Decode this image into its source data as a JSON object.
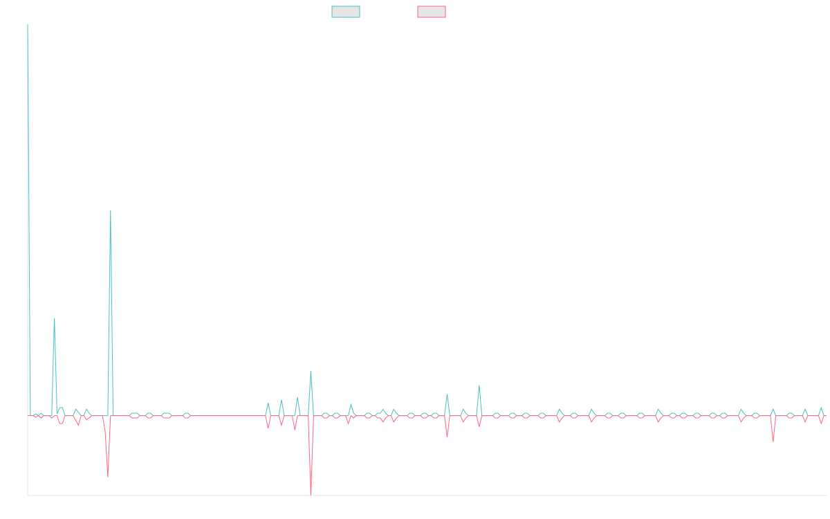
{
  "chart_data": {
    "type": "line",
    "title": "",
    "xlabel": "",
    "ylabel": "",
    "legend_position": "top-center",
    "grid": false,
    "ylim": [
      -100,
      490
    ],
    "series": [
      {
        "color": "#4bc0c0",
        "fill": "#e6e6e6",
        "values": [
          490,
          0,
          0,
          2,
          0,
          3,
          0,
          0,
          0,
          0,
          122,
          2,
          10,
          10,
          0,
          0,
          0,
          0,
          8,
          4,
          0,
          0,
          8,
          3,
          0,
          0,
          0,
          0,
          0,
          0,
          0,
          257,
          0,
          0,
          0,
          0,
          0,
          0,
          0,
          3,
          3,
          3,
          0,
          0,
          0,
          3,
          3,
          0,
          0,
          0,
          0,
          3,
          3,
          3,
          0,
          0,
          0,
          0,
          0,
          3,
          3,
          0,
          0,
          0,
          0,
          0,
          0,
          0,
          0,
          0,
          0,
          0,
          0,
          0,
          0,
          0,
          0,
          0,
          0,
          0,
          0,
          0,
          0,
          0,
          0,
          0,
          0,
          0,
          0,
          0,
          16,
          0,
          0,
          0,
          0,
          20,
          0,
          0,
          0,
          0,
          0,
          23,
          0,
          0,
          0,
          0,
          56,
          0,
          0,
          0,
          0,
          3,
          3,
          0,
          0,
          3,
          3,
          0,
          0,
          0,
          0,
          14,
          3,
          0,
          0,
          0,
          0,
          3,
          3,
          0,
          0,
          3,
          3,
          8,
          3,
          0,
          0,
          8,
          3,
          0,
          0,
          0,
          0,
          3,
          3,
          0,
          0,
          0,
          3,
          3,
          0,
          0,
          3,
          3,
          0,
          0,
          0,
          27,
          0,
          0,
          0,
          0,
          0,
          8,
          3,
          0,
          0,
          0,
          0,
          38,
          0,
          0,
          0,
          0,
          0,
          3,
          3,
          0,
          0,
          0,
          0,
          3,
          3,
          0,
          0,
          0,
          3,
          3,
          0,
          0,
          0,
          0,
          3,
          3,
          0,
          0,
          0,
          0,
          0,
          8,
          3,
          0,
          0,
          0,
          3,
          3,
          0,
          0,
          0,
          0,
          0,
          8,
          3,
          0,
          0,
          0,
          0,
          3,
          3,
          0,
          0,
          0,
          3,
          3,
          0,
          0,
          0,
          0,
          0,
          3,
          3,
          0,
          0,
          0,
          0,
          0,
          8,
          3,
          0,
          0,
          0,
          3,
          3,
          0,
          0,
          3,
          3,
          0,
          0,
          0,
          3,
          3,
          0,
          0,
          0,
          0,
          3,
          3,
          0,
          0,
          3,
          3,
          0,
          0,
          0,
          0,
          0,
          8,
          3,
          0,
          0,
          0,
          3,
          3,
          0,
          0,
          0,
          0,
          0,
          8,
          0,
          0,
          0,
          0,
          0,
          3,
          3,
          0,
          0,
          0,
          0,
          8,
          0,
          0,
          0,
          0,
          0,
          10,
          0,
          0
        ]
      },
      {
        "color": "#ff6384",
        "fill": "#e6e6e6",
        "values": [
          0,
          0,
          0,
          -2,
          0,
          -3,
          0,
          0,
          0,
          -3,
          0,
          0,
          -10,
          -10,
          0,
          0,
          0,
          0,
          -6,
          -12,
          0,
          0,
          -5,
          -3,
          0,
          0,
          0,
          0,
          0,
          -20,
          -77,
          0,
          0,
          0,
          0,
          0,
          0,
          0,
          0,
          -3,
          -3,
          -3,
          0,
          0,
          0,
          -3,
          -3,
          0,
          0,
          0,
          0,
          -3,
          -3,
          -3,
          0,
          0,
          0,
          0,
          0,
          -3,
          -3,
          0,
          0,
          0,
          0,
          0,
          0,
          0,
          0,
          0,
          0,
          0,
          0,
          0,
          0,
          0,
          0,
          0,
          0,
          0,
          0,
          0,
          0,
          0,
          0,
          0,
          0,
          0,
          0,
          0,
          -16,
          0,
          0,
          0,
          0,
          -12,
          0,
          0,
          0,
          0,
          -18,
          0,
          0,
          0,
          0,
          0,
          -100,
          0,
          0,
          0,
          0,
          -3,
          -3,
          0,
          0,
          -3,
          -3,
          0,
          0,
          0,
          -10,
          0,
          -3,
          0,
          0,
          0,
          0,
          -3,
          -3,
          0,
          0,
          -3,
          -3,
          -8,
          -3,
          0,
          0,
          -8,
          -3,
          0,
          0,
          0,
          0,
          -3,
          -3,
          0,
          0,
          0,
          -3,
          -3,
          0,
          0,
          -3,
          -3,
          0,
          0,
          0,
          -27,
          0,
          0,
          0,
          0,
          0,
          -8,
          -3,
          0,
          0,
          0,
          0,
          -14,
          0,
          0,
          0,
          0,
          0,
          -3,
          -3,
          0,
          0,
          0,
          0,
          -3,
          -3,
          0,
          0,
          0,
          -3,
          -3,
          0,
          0,
          0,
          0,
          -3,
          -3,
          0,
          0,
          0,
          0,
          0,
          -8,
          -3,
          0,
          0,
          0,
          -3,
          -3,
          0,
          0,
          0,
          0,
          0,
          -8,
          -3,
          0,
          0,
          0,
          0,
          -3,
          -3,
          0,
          0,
          0,
          -3,
          -3,
          0,
          0,
          0,
          0,
          0,
          -3,
          -3,
          0,
          0,
          0,
          0,
          0,
          -8,
          -3,
          0,
          0,
          0,
          -3,
          -3,
          0,
          0,
          -3,
          -3,
          0,
          0,
          0,
          -3,
          -3,
          0,
          0,
          0,
          0,
          -3,
          -3,
          0,
          0,
          -3,
          -3,
          0,
          0,
          0,
          0,
          0,
          -8,
          -3,
          0,
          0,
          0,
          -3,
          -3,
          0,
          0,
          0,
          0,
          0,
          -33,
          0,
          0,
          0,
          0,
          0,
          -3,
          -3,
          0,
          0,
          0,
          0,
          -8,
          0,
          0,
          0,
          0,
          0,
          -10,
          0,
          0
        ]
      }
    ]
  }
}
